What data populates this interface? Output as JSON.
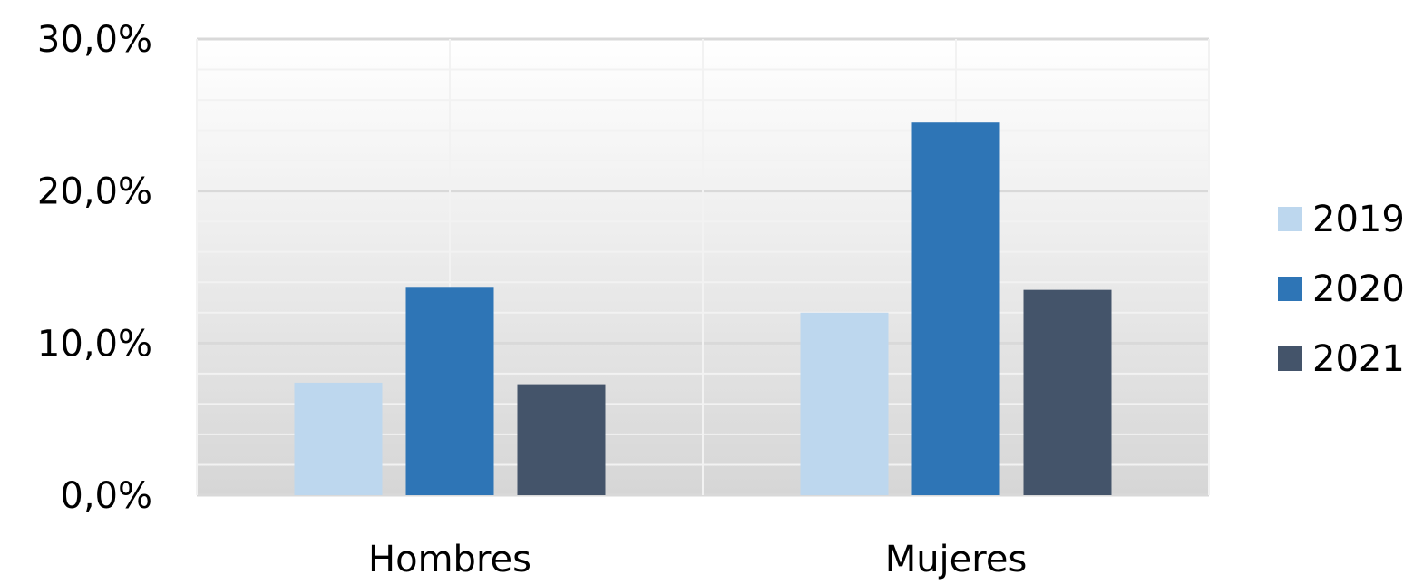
{
  "chart_data": {
    "type": "bar",
    "title": "",
    "xlabel": "",
    "ylabel": "",
    "categories": [
      "Hombres",
      "Mujeres"
    ],
    "series": [
      {
        "name": "2019",
        "values": [
          7.4,
          12.0
        ],
        "color": "#BDD7EE"
      },
      {
        "name": "2020",
        "values": [
          13.7,
          24.5
        ],
        "color": "#2E75B6"
      },
      {
        "name": "2021",
        "values": [
          7.3,
          13.5
        ],
        "color": "#44546A"
      }
    ],
    "ylim": [
      0,
      30
    ],
    "yticks": [
      0,
      10,
      20,
      30
    ],
    "ytick_labels": [
      "0,0%",
      "10,0%",
      "20,0%",
      "30,0%"
    ],
    "grid": true,
    "legend_position": "right",
    "background": "gradient white to light gray"
  }
}
